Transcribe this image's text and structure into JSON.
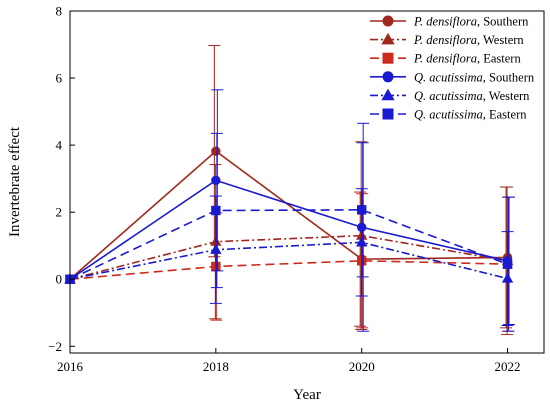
{
  "chart_data": {
    "type": "line",
    "xlabel": "Year",
    "ylabel": "Invertebrate effect",
    "xlim": [
      2016,
      2022.5
    ],
    "ylim": [
      -2.2,
      8
    ],
    "x_ticks": [
      2016,
      2018,
      2020,
      2022
    ],
    "y_ticks": [
      -2,
      0,
      2,
      4,
      6,
      8
    ],
    "grid": false,
    "legend_position": "top-right",
    "x": [
      2016,
      2018,
      2020,
      2022
    ],
    "series": [
      {
        "name_species": "P. densiflora",
        "name_region": ", Southern",
        "color": "#a0281e",
        "marker": "circle",
        "dash": "solid",
        "values": [
          0,
          3.82,
          0.6,
          0.65
        ],
        "error": [
          0,
          3.15,
          2.0,
          2.1
        ]
      },
      {
        "name_species": "P. densiflora",
        "name_region": ", Western",
        "color": "#a0281e",
        "marker": "triangle",
        "dash": "dashdot",
        "values": [
          0,
          1.12,
          1.3,
          0.55
        ],
        "error": [
          0,
          2.3,
          2.8,
          2.2
        ]
      },
      {
        "name_species": "P. densiflora",
        "name_region": ", Eastern",
        "color": "#cc2a1a",
        "marker": "square",
        "dash": "dashed",
        "values": [
          0,
          0.38,
          0.55,
          0.45
        ],
        "error": [
          0,
          1.6,
          2.0,
          2.0
        ]
      },
      {
        "name_species": "Q. acutissima",
        "name_region": ", Southern",
        "color": "#1a1ad0",
        "marker": "circle",
        "dash": "solid",
        "values": [
          0,
          2.95,
          1.55,
          0.55
        ],
        "error": [
          0,
          2.7,
          3.1,
          1.9
        ]
      },
      {
        "name_species": "Q. acutissima",
        "name_region": ", Western",
        "color": "#1a1ad0",
        "marker": "triangle",
        "dash": "dashdot",
        "values": [
          0,
          0.88,
          1.1,
          0.02
        ],
        "error": [
          0,
          1.6,
          1.6,
          1.4
        ]
      },
      {
        "name_species": "Q. acutissima",
        "name_region": ", Eastern",
        "color": "#1a1ad0",
        "marker": "square",
        "dash": "dashed",
        "values": [
          0,
          2.05,
          2.07,
          0.45
        ],
        "error": [
          0,
          2.3,
          2.0,
          2.0
        ]
      }
    ]
  }
}
